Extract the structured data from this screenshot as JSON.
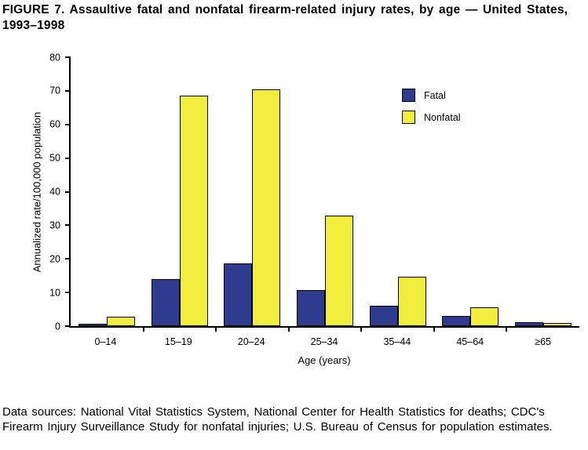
{
  "figure": {
    "title": "FIGURE 7. Assaultive fatal and nonfatal firearm-related injury rates, by age — United States, 1993–1998",
    "footer": "Data sources: National Vital Statistics System, National Center for Health Statistics for deaths; CDC's Firearm Injury Surveillance Study for nonfatal injuries; U.S. Bureau of Census for population estimates."
  },
  "chart_data": {
    "type": "bar",
    "title": "Assaultive fatal and nonfatal firearm-related injury rates, by age — United States, 1993–1998",
    "categories": [
      "0–14",
      "15–19",
      "20–24",
      "25–34",
      "35–44",
      "45–64",
      "≥65"
    ],
    "series": [
      {
        "name": "Fatal",
        "color": "#2e3b8e",
        "values": [
          0.7,
          14.1,
          18.6,
          10.7,
          6.0,
          3.0,
          1.2
        ]
      },
      {
        "name": "Nonfatal",
        "color": "#f2ee3e",
        "values": [
          2.7,
          68.5,
          70.5,
          32.8,
          14.6,
          5.7,
          0.9
        ]
      }
    ],
    "xlabel": "Age (years)",
    "ylabel": "Annualized rate/100,000 population",
    "ylim": [
      0,
      80
    ],
    "ytick_step": 10,
    "legend_position": "top-right",
    "grid": false
  }
}
